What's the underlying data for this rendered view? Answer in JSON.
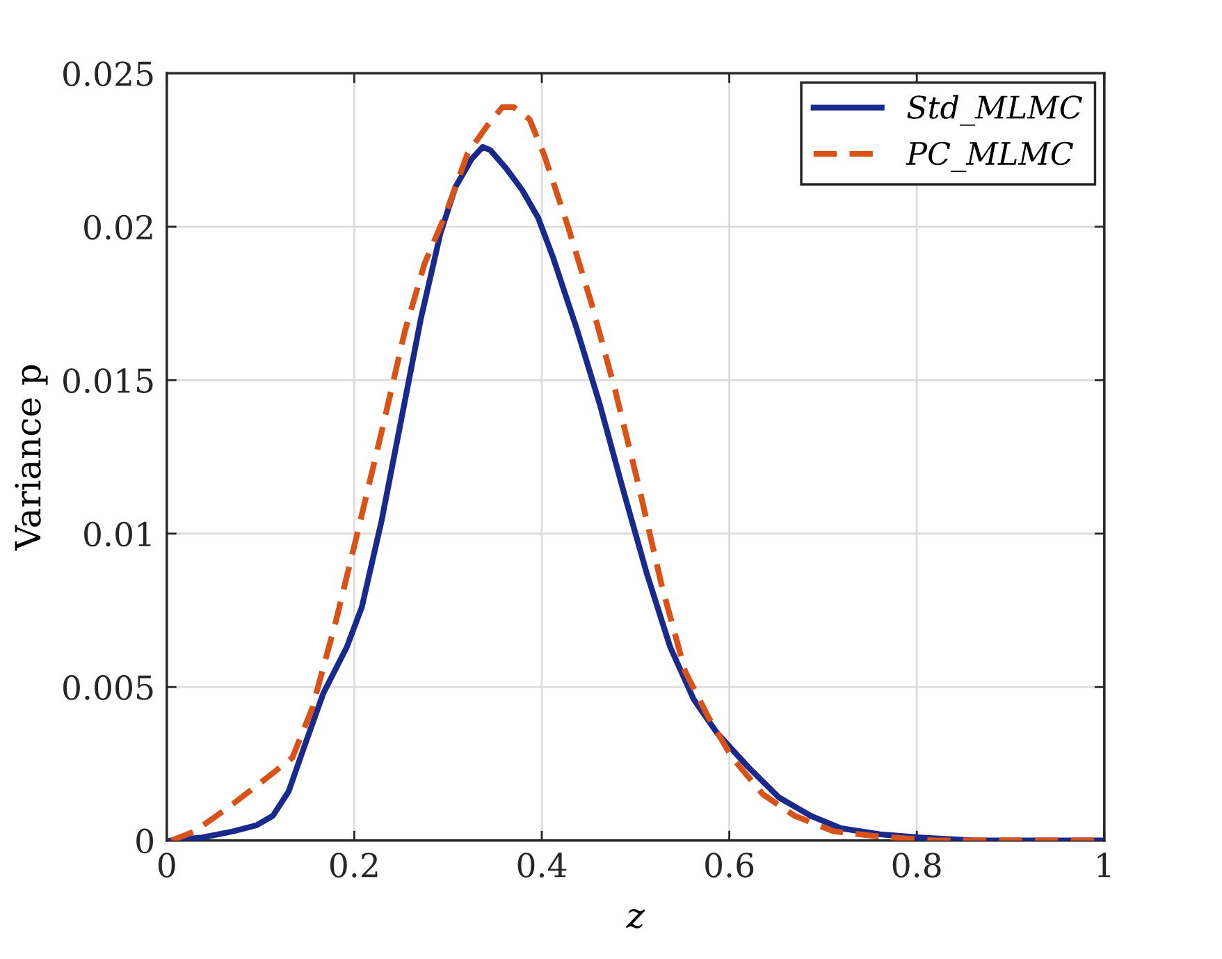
{
  "chart_data": {
    "type": "line",
    "xlabel": "z",
    "ylabel": "Variance p",
    "xlim": [
      0,
      1
    ],
    "ylim": [
      0,
      0.025
    ],
    "xticks": [
      0,
      0.2,
      0.4,
      0.6,
      0.8,
      1
    ],
    "yticks": [
      0,
      0.005,
      0.01,
      0.015,
      0.02,
      0.025
    ],
    "grid": true,
    "legend": "top right",
    "series": [
      {
        "name": "Std_MLMC",
        "color": "#1a2a8c",
        "line_style": "solid",
        "x": [
          0.005,
          0.038,
          0.071,
          0.096,
          0.113,
          0.13,
          0.146,
          0.167,
          0.192,
          0.208,
          0.229,
          0.25,
          0.271,
          0.292,
          0.308,
          0.325,
          0.337,
          0.345,
          0.362,
          0.379,
          0.396,
          0.412,
          0.437,
          0.462,
          0.487,
          0.512,
          0.537,
          0.562,
          0.587,
          0.62,
          0.653,
          0.687,
          0.719,
          0.761,
          0.803,
          0.861,
          0.997
        ],
        "values": [
          0,
          0.0001,
          0.0003,
          0.0005,
          0.0008,
          0.0016,
          0.003,
          0.0048,
          0.0063,
          0.0076,
          0.0104,
          0.0137,
          0.017,
          0.0198,
          0.0213,
          0.0222,
          0.0226,
          0.0225,
          0.0219,
          0.0212,
          0.0203,
          0.019,
          0.0167,
          0.0142,
          0.0114,
          0.0087,
          0.0063,
          0.0046,
          0.0035,
          0.0024,
          0.0014,
          0.0008,
          0.0004,
          0.0002,
          0.0001,
          0,
          0
        ]
      },
      {
        "name": "PC_MLMC",
        "color": "#d95319",
        "line_style": "dashed",
        "x": [
          0.005,
          0.03,
          0.071,
          0.105,
          0.134,
          0.155,
          0.18,
          0.204,
          0.229,
          0.254,
          0.275,
          0.296,
          0.321,
          0.342,
          0.358,
          0.37,
          0.387,
          0.403,
          0.428,
          0.453,
          0.478,
          0.503,
          0.528,
          0.553,
          0.578,
          0.603,
          0.636,
          0.67,
          0.711,
          0.753,
          0.819,
          0.997
        ],
        "values": [
          0,
          0.0003,
          0.0012,
          0.002,
          0.0027,
          0.0043,
          0.0071,
          0.0101,
          0.0133,
          0.0166,
          0.0188,
          0.0203,
          0.0224,
          0.0233,
          0.0239,
          0.0239,
          0.0235,
          0.0223,
          0.02,
          0.0175,
          0.0147,
          0.0116,
          0.0083,
          0.0055,
          0.004,
          0.0027,
          0.0015,
          0.0008,
          0.0003,
          0.00015,
          0,
          0
        ]
      }
    ]
  }
}
